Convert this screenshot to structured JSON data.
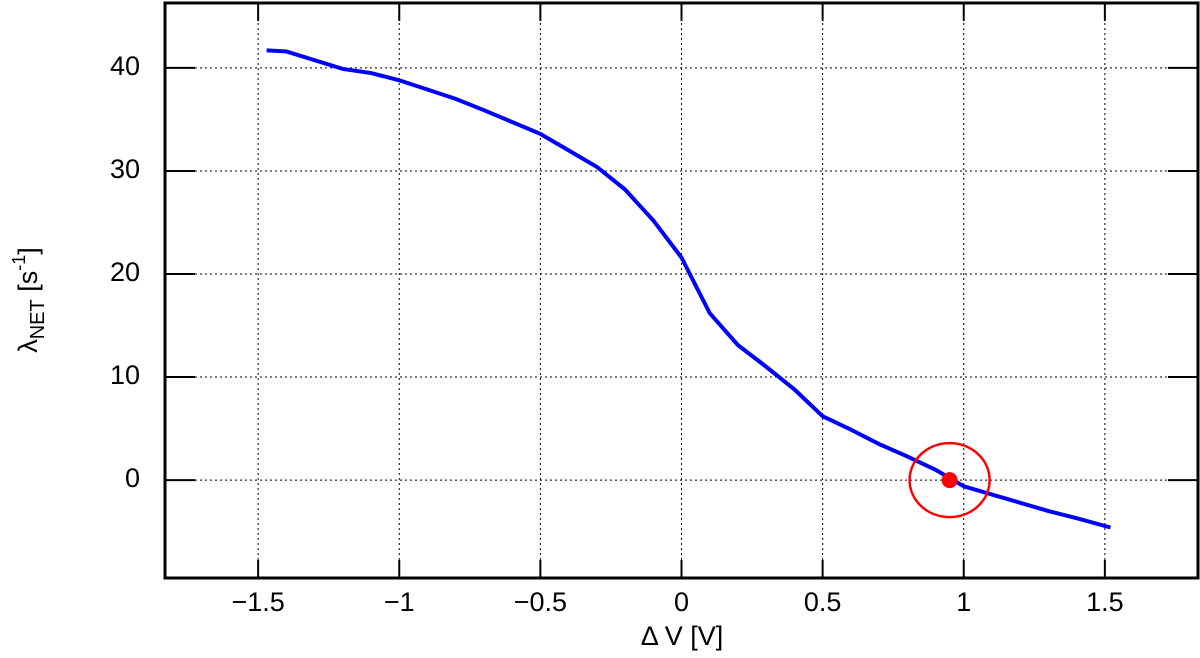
{
  "chart_data": {
    "type": "line",
    "xlabel": "Δ V [V]",
    "ylabel": {
      "symbol": "λ",
      "subscript": "NET",
      "unit": " [s",
      "unit_exponent": "-1",
      "unit_close": "]"
    },
    "x": [
      -1.47,
      -1.4,
      -1.2,
      -1.1,
      -1.0,
      -0.8,
      -0.7,
      -0.5,
      -0.4,
      -0.3,
      -0.2,
      -0.1,
      0,
      0.05,
      0.1,
      0.2,
      0.3,
      0.4,
      0.5,
      0.6,
      0.7,
      0.8,
      0.9,
      1.0,
      1.1,
      1.2,
      1.3,
      1.4,
      1.52
    ],
    "values": [
      41.7,
      41.6,
      39.9,
      39.5,
      38.8,
      37.0,
      35.9,
      33.6,
      32.0,
      30.4,
      28.2,
      25.2,
      21.6,
      18.9,
      16.2,
      13.1,
      11.0,
      8.8,
      6.2,
      4.9,
      3.5,
      2.3,
      1.0,
      -0.6,
      -1.4,
      -2.2,
      -3.0,
      -3.7,
      -4.6
    ],
    "color": "#0000ff",
    "points": {
      "x": [
        0.95
      ],
      "values": [
        0
      ],
      "color": "#ff0000"
    },
    "xlim": [
      -1.83,
      1.83
    ],
    "ylim": [
      -9.5,
      46.3
    ],
    "xticks": [
      {
        "value": -1.5,
        "label": "−1.5"
      },
      {
        "value": -1,
        "label": "−1"
      },
      {
        "value": -0.5,
        "label": "−0.5"
      },
      0,
      0.5,
      1,
      1.5
    ],
    "yticks": [
      0,
      10,
      20,
      30,
      40
    ],
    "grid": true
  }
}
